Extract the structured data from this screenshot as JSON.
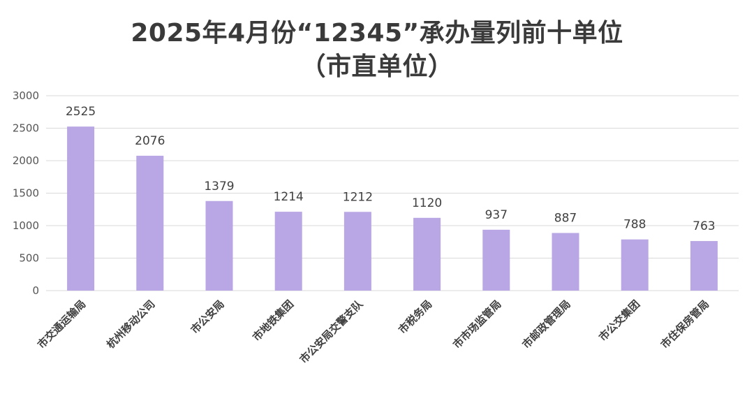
{
  "chart_data": {
    "type": "bar",
    "title": "2025年4月份“12345”承办量列前十单位",
    "subtitle": "（市直单位）",
    "categories": [
      "市交通运输局",
      "杭州移动公司",
      "市公安局",
      "市地铁集团",
      "市公安局交警支队",
      "市税务局",
      "市市场监管局",
      "市邮政管理局",
      "市公交集团",
      "市住保房管局"
    ],
    "values": [
      2525,
      2076,
      1379,
      1214,
      1212,
      1120,
      937,
      887,
      788,
      763
    ],
    "ylim": [
      0,
      3000
    ],
    "yticks": [
      0,
      500,
      1000,
      1500,
      2000,
      2500,
      3000
    ],
    "bar_color": "#b9a6e4",
    "grid_color": "#d9d9d9",
    "grid": true,
    "legend": "none"
  }
}
